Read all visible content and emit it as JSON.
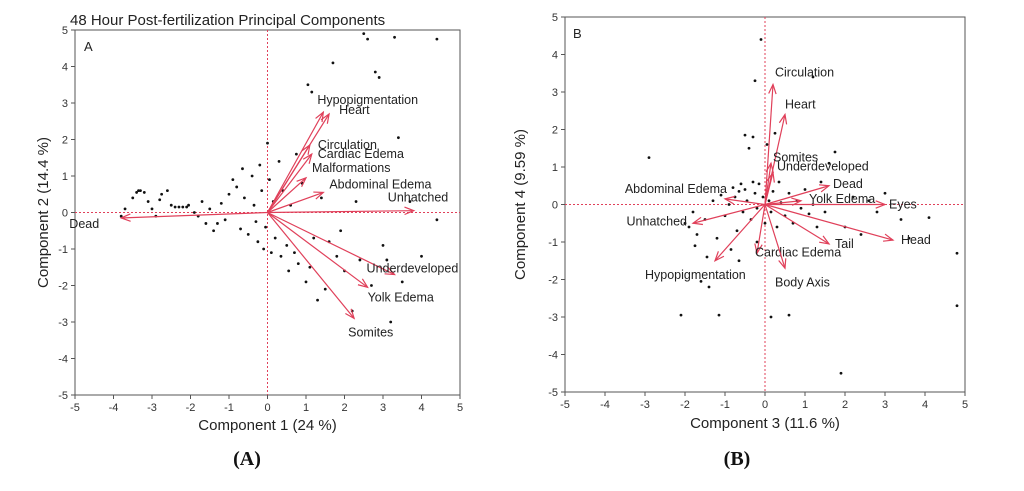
{
  "colors": {
    "arrow": "#e0405a",
    "origin_line": "#e0405a",
    "point": "#111111",
    "frame": "#555555"
  },
  "captions": [
    "(A)",
    "(B)"
  ],
  "chart_data": [
    {
      "type": "scatter",
      "title": "48 Hour Post-fertilization Principal Components",
      "panel_label": "A",
      "xlabel": "Component 1  (24 %)",
      "ylabel": "Component 2  (14.4 %)",
      "xlim": [
        -5,
        5
      ],
      "ylim": [
        -5,
        5
      ],
      "xticks": [
        "-5",
        "-4",
        "-3",
        "-2",
        "-1",
        "0",
        "1",
        "2",
        "3",
        "4",
        "5"
      ],
      "yticks": [
        "-5",
        "-4",
        "-3",
        "-2",
        "-1",
        "0",
        "1",
        "2",
        "3",
        "4",
        "5"
      ],
      "vectors": [
        {
          "label": "Dead",
          "x": -3.8,
          "y": -0.15
        },
        {
          "label": "Hypopigmentation",
          "x": 1.45,
          "y": 2.75
        },
        {
          "label": "Heart",
          "x": 1.6,
          "y": 2.7
        },
        {
          "label": "Circulation",
          "x": 1.1,
          "y": 1.85
        },
        {
          "label": "Cardiac Edema",
          "x": 1.15,
          "y": 1.6
        },
        {
          "label": "Malformations",
          "x": 1.0,
          "y": 0.95
        },
        {
          "label": "Abdominal Edema",
          "x": 1.45,
          "y": 0.55
        },
        {
          "label": "Unhatched",
          "x": 3.8,
          "y": 0.05
        },
        {
          "label": "Underdeveloped",
          "x": 3.3,
          "y": -1.7
        },
        {
          "label": "Yolk Edema",
          "x": 2.6,
          "y": -2.05
        },
        {
          "label": "Somites",
          "x": 2.25,
          "y": -2.9
        }
      ],
      "points": [
        [
          -3.8,
          -0.1
        ],
        [
          -3.7,
          0.1
        ],
        [
          -3.5,
          0.4
        ],
        [
          -3.4,
          0.55
        ],
        [
          -3.35,
          0.6
        ],
        [
          -3.3,
          0.6
        ],
        [
          -3.2,
          0.55
        ],
        [
          -3.1,
          0.3
        ],
        [
          -3.0,
          0.1
        ],
        [
          -2.9,
          -0.1
        ],
        [
          -2.8,
          0.35
        ],
        [
          -2.75,
          0.5
        ],
        [
          -2.6,
          0.6
        ],
        [
          -2.5,
          0.2
        ],
        [
          -2.4,
          0.15
        ],
        [
          -2.3,
          0.15
        ],
        [
          -2.2,
          0.15
        ],
        [
          -2.1,
          0.15
        ],
        [
          -2.05,
          0.2
        ],
        [
          -1.9,
          0.0
        ],
        [
          -1.8,
          -0.1
        ],
        [
          -1.7,
          0.3
        ],
        [
          -1.6,
          -0.3
        ],
        [
          -1.5,
          0.1
        ],
        [
          -1.4,
          -0.5
        ],
        [
          -1.3,
          -0.3
        ],
        [
          -1.2,
          0.25
        ],
        [
          -1.1,
          -0.2
        ],
        [
          -1.0,
          0.5
        ],
        [
          -0.9,
          0.9
        ],
        [
          -0.8,
          0.7
        ],
        [
          -0.7,
          -0.45
        ],
        [
          -0.65,
          1.2
        ],
        [
          -0.6,
          0.4
        ],
        [
          -0.5,
          -0.6
        ],
        [
          -0.4,
          1.0
        ],
        [
          -0.35,
          0.2
        ],
        [
          -0.3,
          -0.25
        ],
        [
          -0.25,
          -0.8
        ],
        [
          -0.2,
          1.3
        ],
        [
          -0.15,
          0.6
        ],
        [
          -0.1,
          -1.0
        ],
        [
          -0.05,
          -0.4
        ],
        [
          0.0,
          1.9
        ],
        [
          0.05,
          0.9
        ],
        [
          0.1,
          -1.1
        ],
        [
          0.15,
          0.3
        ],
        [
          0.2,
          -0.7
        ],
        [
          0.3,
          1.4
        ],
        [
          0.35,
          -1.2
        ],
        [
          0.4,
          0.6
        ],
        [
          0.5,
          -0.9
        ],
        [
          0.55,
          -1.6
        ],
        [
          0.6,
          0.2
        ],
        [
          0.7,
          -1.1
        ],
        [
          0.75,
          1.6
        ],
        [
          0.8,
          -1.4
        ],
        [
          0.9,
          0.8
        ],
        [
          1.0,
          -1.9
        ],
        [
          1.05,
          3.5
        ],
        [
          1.1,
          -1.5
        ],
        [
          1.15,
          3.3
        ],
        [
          1.2,
          -0.7
        ],
        [
          1.3,
          -2.4
        ],
        [
          1.4,
          0.4
        ],
        [
          1.5,
          -2.1
        ],
        [
          1.6,
          -0.8
        ],
        [
          1.7,
          4.1
        ],
        [
          1.8,
          -1.2
        ],
        [
          1.9,
          -0.5
        ],
        [
          2.0,
          -1.6
        ],
        [
          2.2,
          -2.7
        ],
        [
          2.3,
          0.3
        ],
        [
          2.4,
          -1.3
        ],
        [
          2.5,
          4.9
        ],
        [
          2.6,
          4.75
        ],
        [
          2.7,
          -2.0
        ],
        [
          2.8,
          3.85
        ],
        [
          2.9,
          3.7
        ],
        [
          3.0,
          -0.9
        ],
        [
          3.1,
          -1.3
        ],
        [
          3.2,
          -3.0
        ],
        [
          3.3,
          4.8
        ],
        [
          3.4,
          2.05
        ],
        [
          3.5,
          -1.9
        ],
        [
          3.7,
          0.3
        ],
        [
          4.0,
          -1.2
        ],
        [
          4.4,
          4.75
        ],
        [
          4.4,
          -0.2
        ]
      ]
    },
    {
      "type": "scatter",
      "title": "",
      "panel_label": "B",
      "xlabel": "Component 3  (11.6 %)",
      "ylabel": "Component 4  (9.59 %)",
      "xlim": [
        -5,
        5
      ],
      "ylim": [
        -5,
        5
      ],
      "xticks": [
        "-5",
        "-4",
        "-3",
        "-2",
        "-1",
        "0",
        "1",
        "2",
        "3",
        "4",
        "5"
      ],
      "yticks": [
        "-5",
        "-4",
        "-3",
        "-2",
        "-1",
        "0",
        "1",
        "2",
        "3",
        "4",
        "5"
      ],
      "vectors": [
        {
          "label": "Circulation",
          "x": 0.2,
          "y": 3.2
        },
        {
          "label": "Heart",
          "x": 0.5,
          "y": 2.4
        },
        {
          "label": "Somites",
          "x": 0.15,
          "y": 1.1
        },
        {
          "label": "Underdeveloped",
          "x": 0.2,
          "y": 0.85
        },
        {
          "label": "Dead",
          "x": 1.6,
          "y": 0.5
        },
        {
          "label": "Yolk Edema",
          "x": 0.9,
          "y": 0.1
        },
        {
          "label": "Eyes",
          "x": 3.0,
          "y": 0.0
        },
        {
          "label": "Head",
          "x": 3.2,
          "y": -0.95
        },
        {
          "label": "Tail",
          "x": 1.6,
          "y": -1.05
        },
        {
          "label": "Abdominal Edema",
          "x": -1.0,
          "y": 0.15
        },
        {
          "label": "Unhatched",
          "x": -1.8,
          "y": -0.5
        },
        {
          "label": "Cardiac Edema",
          "x": -0.2,
          "y": -1.3
        },
        {
          "label": "Hypopigmentation",
          "x": -1.25,
          "y": -1.5
        },
        {
          "label": "Body Axis",
          "x": 0.5,
          "y": -1.7
        }
      ],
      "points": [
        [
          -2.9,
          1.25
        ],
        [
          -2.1,
          -2.95
        ],
        [
          -2.0,
          -0.5
        ],
        [
          -1.9,
          -0.6
        ],
        [
          -1.8,
          -0.2
        ],
        [
          -1.75,
          -1.1
        ],
        [
          -1.7,
          -0.8
        ],
        [
          -1.6,
          -2.05
        ],
        [
          -1.5,
          -0.4
        ],
        [
          -1.45,
          -1.4
        ],
        [
          -1.4,
          -2.2
        ],
        [
          -1.3,
          0.1
        ],
        [
          -1.2,
          -0.9
        ],
        [
          -1.15,
          -2.95
        ],
        [
          -1.1,
          0.25
        ],
        [
          -1.0,
          -0.3
        ],
        [
          -0.9,
          0.0
        ],
        [
          -0.85,
          -1.2
        ],
        [
          -0.8,
          0.45
        ],
        [
          -0.75,
          0.2
        ],
        [
          -0.7,
          -0.7
        ],
        [
          -0.65,
          0.35
        ],
        [
          -0.6,
          0.55
        ],
        [
          -0.55,
          -0.2
        ],
        [
          -0.5,
          0.4
        ],
        [
          -0.45,
          0.1
        ],
        [
          -0.4,
          1.5
        ],
        [
          -0.35,
          -0.4
        ],
        [
          -0.3,
          0.6
        ],
        [
          -0.25,
          0.3
        ],
        [
          -0.2,
          -0.1
        ],
        [
          -0.15,
          0.55
        ],
        [
          -0.1,
          4.4
        ],
        [
          -0.05,
          0.2
        ],
        [
          0.0,
          -0.5
        ],
        [
          0.05,
          1.6
        ],
        [
          0.1,
          0.1
        ],
        [
          0.15,
          -0.2
        ],
        [
          0.2,
          0.35
        ],
        [
          0.25,
          1.9
        ],
        [
          0.3,
          -0.6
        ],
        [
          0.35,
          0.6
        ],
        [
          0.4,
          0.05
        ],
        [
          0.5,
          -0.3
        ],
        [
          0.6,
          0.3
        ],
        [
          0.7,
          -0.5
        ],
        [
          0.8,
          0.1
        ],
        [
          0.9,
          -0.1
        ],
        [
          1.0,
          0.4
        ],
        [
          1.1,
          -0.25
        ],
        [
          1.2,
          0.0
        ],
        [
          1.3,
          -0.6
        ],
        [
          1.4,
          0.6
        ],
        [
          1.5,
          -0.2
        ],
        [
          1.6,
          1.1
        ],
        [
          1.75,
          1.4
        ],
        [
          1.9,
          -4.5
        ],
        [
          2.0,
          -0.6
        ],
        [
          2.2,
          0.2
        ],
        [
          2.4,
          -0.8
        ],
        [
          2.6,
          0.1
        ],
        [
          2.8,
          -0.2
        ],
        [
          3.0,
          0.3
        ],
        [
          3.4,
          -0.4
        ],
        [
          3.6,
          -0.9
        ],
        [
          4.1,
          -0.35
        ],
        [
          4.8,
          -1.3
        ],
        [
          4.8,
          -2.7
        ],
        [
          -0.3,
          1.8
        ],
        [
          -0.5,
          1.85
        ],
        [
          -0.25,
          3.3
        ],
        [
          -0.65,
          -1.5
        ],
        [
          0.15,
          -3.0
        ],
        [
          0.6,
          -2.95
        ],
        [
          1.2,
          3.4
        ],
        [
          -0.2,
          -1.0
        ]
      ]
    }
  ]
}
